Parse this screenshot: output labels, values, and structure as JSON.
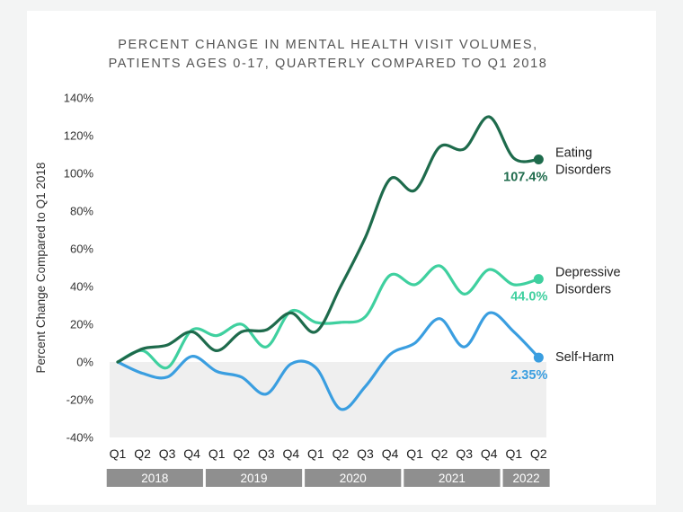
{
  "chart_data": {
    "type": "line",
    "title_lines": [
      "PERCENT CHANGE IN MENTAL HEALTH VISIT VOLUMES,",
      "PATIENTS AGES 0-17, QUARTERLY COMPARED TO Q1 2018"
    ],
    "ylabel": "Percent Change Compared to Q1 2018",
    "ylim": [
      -40,
      140
    ],
    "yticks": [
      140,
      120,
      100,
      80,
      60,
      40,
      20,
      0,
      -20,
      -40
    ],
    "ytick_labels": [
      "140%",
      "120%",
      "100%",
      "80%",
      "60%",
      "40%",
      "20%",
      "0%",
      "-20%",
      "-40%"
    ],
    "x": [
      "Q1",
      "Q2",
      "Q3",
      "Q4",
      "Q1",
      "Q2",
      "Q3",
      "Q4",
      "Q1",
      "Q2",
      "Q3",
      "Q4",
      "Q1",
      "Q2",
      "Q3",
      "Q4",
      "Q1",
      "Q2"
    ],
    "year_groups": [
      {
        "label": "2018",
        "count": 4
      },
      {
        "label": "2019",
        "count": 4
      },
      {
        "label": "2020",
        "count": 4
      },
      {
        "label": "2021",
        "count": 4
      },
      {
        "label": "2022",
        "count": 2
      }
    ],
    "negative_region_color": "#efefef",
    "series": [
      {
        "name_lines": [
          "Eating",
          "Disorders"
        ],
        "end_label": "107.4%",
        "color": "#1e6b4c",
        "values": [
          0,
          7,
          9,
          16,
          6,
          16,
          17,
          26,
          16,
          40,
          66,
          97,
          91,
          114,
          113,
          130,
          108,
          107.4
        ]
      },
      {
        "name_lines": [
          "Depressive",
          "Disorders"
        ],
        "end_label": "44.0%",
        "color": "#3fd09f",
        "values": [
          0,
          6,
          -3,
          17,
          14,
          20,
          8,
          27,
          21,
          21,
          24,
          46,
          41,
          51,
          36,
          49,
          41,
          44.0
        ]
      },
      {
        "name_lines": [
          "Self-Harm"
        ],
        "end_label": "2.35%",
        "color": "#3a9ee0",
        "values": [
          0,
          -6,
          -8,
          3,
          -5,
          -8,
          -17,
          -1,
          -3,
          -25,
          -13,
          4,
          10,
          23,
          8,
          26,
          16,
          2.35
        ]
      }
    ]
  }
}
